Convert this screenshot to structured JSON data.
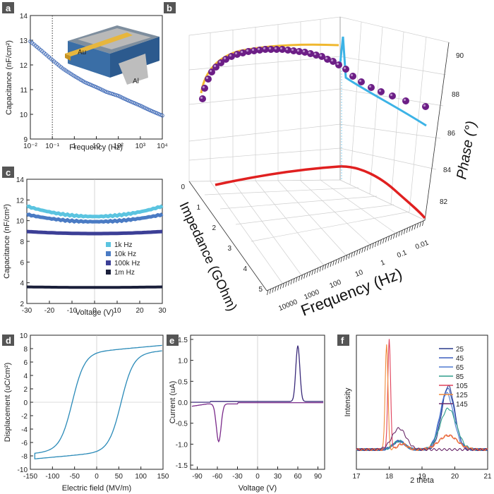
{
  "panels": [
    {
      "id": "a",
      "type": "scatter",
      "xlabel": "Frequency (Hz)",
      "ylabel": "Capacitance (nF/cm²)",
      "xscale": "log",
      "xlim": [
        0.01,
        10000
      ],
      "ylim": [
        9,
        14
      ],
      "xticks": [
        "10⁻²",
        "10⁻¹",
        "1",
        "10",
        "10²",
        "10³",
        "10⁴"
      ],
      "yticks": [
        "9",
        "10",
        "11",
        "12",
        "13",
        "14"
      ],
      "inset_labels": [
        "Au",
        "Al"
      ],
      "series": [
        {
          "color": "#3a66b5",
          "x": [
            0.01,
            0.03,
            0.1,
            0.3,
            1,
            3,
            10,
            30,
            100,
            300,
            1000,
            3000,
            10000
          ],
          "y": [
            12.95,
            12.6,
            12.2,
            11.85,
            11.55,
            11.3,
            11.1,
            10.9,
            10.75,
            10.55,
            10.35,
            10.15,
            9.95
          ]
        }
      ],
      "vline": 0.1
    },
    {
      "id": "b",
      "type": "3d-line",
      "xlabel": "Frequency (Hz)",
      "ylabel": "Impedance (GOhm)",
      "zlabel": "Phase (°)",
      "freq_ticks": [
        "10000",
        "1000",
        "100",
        "10",
        "1",
        "0.1",
        "0.01"
      ],
      "imp_ticks": [
        "0",
        "1",
        "2",
        "3",
        "4",
        "5"
      ],
      "phase_ticks": [
        "82",
        "84",
        "86",
        "88",
        "90"
      ]
    },
    {
      "id": "c",
      "type": "line",
      "xlabel": "Voltage (V)",
      "ylabel": "Capacitance (nF/cm²)",
      "xlim": [
        -30,
        30
      ],
      "ylim": [
        2,
        14
      ],
      "xticks": [
        "-30",
        "-20",
        "-10",
        "0",
        "10",
        "20",
        "30"
      ],
      "yticks": [
        "2",
        "4",
        "6",
        "8",
        "10",
        "12",
        "14"
      ],
      "series": [
        {
          "name": "1k Hz",
          "color": "#5bc4e0",
          "y0": 10.4,
          "curv": 1.0
        },
        {
          "name": "10k Hz",
          "color": "#4a7bc4",
          "y0": 9.9,
          "curv": 0.7
        },
        {
          "name": "100k Hz",
          "color": "#3c3f96",
          "y0": 8.75,
          "curv": 0.2
        },
        {
          "name": "1m Hz",
          "color": "#1a1f3a",
          "y0": 3.55,
          "curv": 0.05
        }
      ]
    },
    {
      "id": "d",
      "type": "line",
      "xlabel": "Electric field (MV/m)",
      "ylabel": "Displacement (uC/cm²)",
      "xlim": [
        -150,
        150
      ],
      "ylim": [
        -10,
        10
      ],
      "xticks": [
        "-150",
        "-100",
        "-50",
        "0",
        "50",
        "100",
        "150"
      ],
      "yticks": [
        "-10",
        "-8",
        "-6",
        "-4",
        "-2",
        "0",
        "2",
        "4",
        "6",
        "8",
        "10"
      ]
    },
    {
      "id": "e",
      "type": "line",
      "xlabel": "Voltage (V)",
      "ylabel": "Current (uA)",
      "xlim": [
        -100,
        100
      ],
      "ylim": [
        -1.6,
        1.6
      ],
      "xticks": [
        "-90",
        "-60",
        "-30",
        "0",
        "30",
        "60",
        "90"
      ],
      "yticks": [
        "1.5",
        "1.0",
        "0.5",
        "0.0",
        "-0.5",
        "-1.0",
        "-1.5"
      ]
    },
    {
      "id": "f",
      "type": "line",
      "xlabel": "2 theta",
      "ylabel": "Intensity",
      "xlim": [
        17,
        21
      ],
      "xticks": [
        "17",
        "18",
        "19",
        "20",
        "21"
      ],
      "series": [
        {
          "name": "25",
          "color": "#2a3a8c"
        },
        {
          "name": "45",
          "color": "#3b5fbf"
        },
        {
          "name": "65",
          "color": "#4e7ad0"
        },
        {
          "name": "85",
          "color": "#2e9e8c"
        },
        {
          "name": "105",
          "color": "#e0405a"
        },
        {
          "name": "125",
          "color": "#f08a3a"
        },
        {
          "name": "145",
          "color": "#6a2a6a"
        }
      ]
    }
  ],
  "chart_data": [
    {
      "type": "scatter",
      "panel": "a",
      "xlabel": "Frequency (Hz)",
      "ylabel": "Capacitance (nF/cm²)",
      "xlim": [
        0.01,
        10000
      ],
      "ylim": [
        9,
        14
      ],
      "x": [
        0.01,
        0.1,
        1,
        10,
        100,
        1000,
        10000
      ],
      "values": [
        12.95,
        12.2,
        11.55,
        11.1,
        10.75,
        10.35,
        9.95
      ]
    },
    {
      "type": "line",
      "panel": "c",
      "xlabel": "Voltage (V)",
      "ylabel": "Capacitance (nF/cm²)",
      "xlim": [
        -30,
        30
      ],
      "ylim": [
        2,
        14
      ],
      "series": [
        {
          "name": "1k Hz",
          "values": [
            11.4,
            10.4,
            11.4
          ]
        },
        {
          "name": "10k Hz",
          "values": [
            10.6,
            9.9,
            10.6
          ]
        },
        {
          "name": "100k Hz",
          "values": [
            8.9,
            8.75,
            8.9
          ]
        },
        {
          "name": "1m Hz",
          "values": [
            3.6,
            3.55,
            3.6
          ]
        }
      ],
      "x": [
        -30,
        0,
        30
      ]
    },
    {
      "type": "line",
      "panel": "d",
      "xlabel": "Electric field (MV/m)",
      "ylabel": "Displacement (uC/cm²)",
      "xlim": [
        -150,
        150
      ],
      "ylim": [
        -10,
        10
      ]
    },
    {
      "type": "line",
      "panel": "e",
      "xlabel": "Voltage (V)",
      "ylabel": "Current (uA)",
      "xlim": [
        -100,
        100
      ],
      "ylim": [
        -1.6,
        1.6
      ],
      "peaks": [
        {
          "x": 60,
          "y": 1.33
        },
        {
          "x": -58,
          "y": -0.9
        }
      ]
    },
    {
      "type": "line",
      "panel": "f",
      "xlabel": "2 theta",
      "ylabel": "Intensity",
      "xlim": [
        17,
        21
      ],
      "series": [
        {
          "name": "25"
        },
        {
          "name": "45"
        },
        {
          "name": "65"
        },
        {
          "name": "85"
        },
        {
          "name": "105"
        },
        {
          "name": "125"
        },
        {
          "name": "145"
        }
      ]
    }
  ]
}
